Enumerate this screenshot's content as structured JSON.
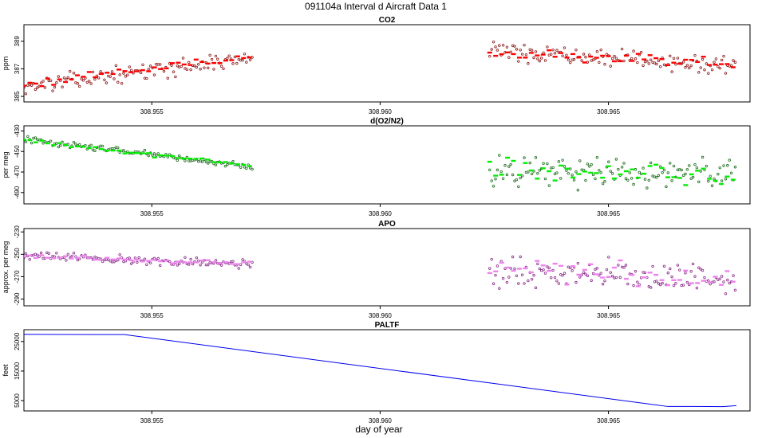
{
  "figure": {
    "title": "091104a   Interval d Aircraft Data 1",
    "xlabel": "day of year"
  },
  "chart_data": [
    {
      "type": "scatter",
      "title": "CO2",
      "ylabel": "ppm",
      "x_ticks": [
        "308.955",
        "308.960",
        "308.965"
      ],
      "x_tick_values": [
        308.955,
        308.96,
        308.965
      ],
      "y_ticks": [
        "385",
        "387",
        "389"
      ],
      "y_tick_values": [
        385,
        387,
        389
      ],
      "xlim": [
        308.9522,
        308.9681
      ],
      "ylim": [
        384.6,
        390.2
      ],
      "series": [
        {
          "type": "points",
          "color": "#8b1a1a",
          "segments": [
            {
              "x": [
                308.9522,
                308.9572
              ],
              "y_start": 385.7,
              "y_end": 387.8,
              "jitter": 0.55
            },
            {
              "x": [
                308.9624,
                308.9678
              ],
              "y_start": 388.3,
              "y_end": 387.2,
              "jitter": 0.6
            }
          ]
        },
        {
          "type": "dashes",
          "color": "#ff0000",
          "segments": [
            {
              "x": [
                308.9522,
                308.9572
              ],
              "y_start": 385.9,
              "y_end": 387.9,
              "jitter": 0.25
            },
            {
              "x": [
                308.9624,
                308.9678
              ],
              "y_start": 388.2,
              "y_end": 387.4,
              "jitter": 0.35
            }
          ]
        }
      ]
    },
    {
      "type": "scatter",
      "title": "d(O2/N2)",
      "ylabel": "per meg",
      "x_ticks": [
        "308.955",
        "308.960",
        "308.965"
      ],
      "x_tick_values": [
        308.955,
        308.96,
        308.965
      ],
      "y_ticks": [
        "-490",
        "-470",
        "-450",
        "-430"
      ],
      "y_tick_values": [
        -490,
        -470,
        -450,
        -430
      ],
      "xlim": [
        308.9522,
        308.9681
      ],
      "ylim": [
        -501,
        -425
      ],
      "series": [
        {
          "type": "points",
          "color": "#1b6b1b",
          "segments": [
            {
              "x": [
                308.9522,
                308.9572
              ],
              "y_start": -438,
              "y_end": -465,
              "jitter": 3
            },
            {
              "x": [
                308.9624,
                308.9678
              ],
              "y_start": -470,
              "y_end": -472,
              "jitter": 14
            }
          ]
        },
        {
          "type": "dashes",
          "color": "#00ee00",
          "segments": [
            {
              "x": [
                308.9522,
                308.9572
              ],
              "y_start": -439,
              "y_end": -464,
              "jitter": 2
            },
            {
              "x": [
                308.9624,
                308.9678
              ],
              "y_start": -468,
              "y_end": -473,
              "jitter": 11
            }
          ]
        }
      ]
    },
    {
      "type": "scatter",
      "title": "APO",
      "ylabel": "approx. per meg",
      "x_ticks": [
        "308.955",
        "308.960",
        "308.965"
      ],
      "x_tick_values": [
        308.955,
        308.96,
        308.965
      ],
      "y_ticks": [
        "-290",
        "-270",
        "-250",
        "-230"
      ],
      "y_tick_values": [
        -290,
        -270,
        -250,
        -230
      ],
      "xlim": [
        308.9522,
        308.9681
      ],
      "ylim": [
        -296,
        -227
      ],
      "series": [
        {
          "type": "points",
          "color": "#8a2a8a",
          "segments": [
            {
              "x": [
                308.9522,
                308.9572
              ],
              "y_start": -251,
              "y_end": -259,
              "jitter": 4
            },
            {
              "x": [
                308.9624,
                308.9678
              ],
              "y_start": -262,
              "y_end": -276,
              "jitter": 13
            }
          ]
        },
        {
          "type": "dashes",
          "color": "#ee82ee",
          "segments": [
            {
              "x": [
                308.9522,
                308.9572
              ],
              "y_start": -252,
              "y_end": -258,
              "jitter": 2
            },
            {
              "x": [
                308.9624,
                308.9678
              ],
              "y_start": -262,
              "y_end": -275,
              "jitter": 10
            }
          ]
        }
      ]
    },
    {
      "type": "line",
      "title": "PALTF",
      "ylabel": "feet",
      "x_ticks": [
        "308.955",
        "308.960",
        "308.965"
      ],
      "x_tick_values": [
        308.955,
        308.96,
        308.965
      ],
      "y_ticks": [
        "5000",
        "15000",
        "25000"
      ],
      "y_tick_values": [
        5000,
        15000,
        25000
      ],
      "xlim": [
        308.9522,
        308.9681
      ],
      "ylim": [
        1500,
        29000
      ],
      "series": [
        {
          "color": "#0000ee",
          "x": [
            308.9522,
            308.9544,
            308.9663,
            308.9668,
            308.9675,
            308.9678
          ],
          "y": [
            27400,
            27350,
            3000,
            3000,
            2950,
            3300
          ]
        }
      ]
    }
  ]
}
